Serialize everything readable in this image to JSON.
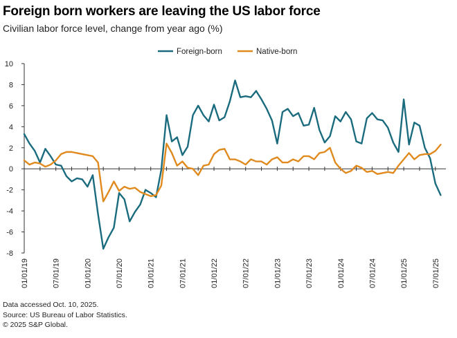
{
  "header": {
    "title": "Foreign born workers are leaving the US labor force",
    "subtitle": "Civilian labor force level, change from year ago (%)"
  },
  "footer": {
    "notes": [
      "Data accessed Oct. 10, 2025.",
      "Source: US Bureau of Labor Statistics.",
      "© 2025 S&P Global."
    ]
  },
  "chart_data": {
    "type": "line",
    "title": "Foreign born workers are leaving the US labor force",
    "ylabel": "Civilian labor force level, change from year ago (%)",
    "xlabel": "",
    "ylim": [
      -8,
      10
    ],
    "yticks": [
      -8,
      -6,
      -4,
      -2,
      0,
      2,
      4,
      6,
      8,
      10
    ],
    "x_start": "2019-01",
    "x_months": 81,
    "xtick_labels": [
      "01/01/19",
      "07/01/19",
      "01/01/20",
      "07/01/20",
      "01/01/21",
      "07/01/21",
      "01/01/22",
      "07/01/22",
      "01/01/23",
      "07/01/23",
      "01/01/24",
      "07/01/24",
      "01/01/25",
      "07/01/25"
    ],
    "xtick_month_index": [
      0,
      6,
      12,
      18,
      24,
      30,
      36,
      42,
      48,
      54,
      60,
      66,
      72,
      78
    ],
    "legend_position": "top-center",
    "series": [
      {
        "name": "Foreign-born",
        "color": "#1a6b7e",
        "values": [
          3.3,
          2.4,
          1.7,
          0.6,
          1.9,
          1.2,
          0.4,
          0.3,
          -0.7,
          -1.2,
          -0.9,
          -1.0,
          -1.7,
          -0.6,
          -4.3,
          -7.6,
          -6.5,
          -5.6,
          -2.3,
          -2.9,
          -5.0,
          -4.1,
          -3.4,
          -2.0,
          -2.3,
          -2.7,
          -0.1,
          5.1,
          2.6,
          3.0,
          1.3,
          2.1,
          5.1,
          6.0,
          5.1,
          4.5,
          6.1,
          4.6,
          4.9,
          6.4,
          8.4,
          6.8,
          6.9,
          6.8,
          7.4,
          6.6,
          5.7,
          4.6,
          2.4,
          5.4,
          5.7,
          5.0,
          5.3,
          4.1,
          4.2,
          5.8,
          3.7,
          2.5,
          3.1,
          5.0,
          4.5,
          5.4,
          4.7,
          2.6,
          2.4,
          4.8,
          5.3,
          4.7,
          4.6,
          3.9,
          2.5,
          1.6,
          6.6,
          2.3,
          4.4,
          4.1,
          2.0,
          1.0,
          -1.4,
          -2.5
        ]
      },
      {
        "name": "Native-born",
        "color": "#e08a1e",
        "values": [
          0.8,
          0.4,
          0.6,
          0.5,
          0.2,
          0.4,
          0.8,
          1.4,
          1.6,
          1.6,
          1.5,
          1.4,
          1.3,
          1.2,
          0.6,
          -3.1,
          -2.2,
          -1.2,
          -2.1,
          -1.7,
          -1.9,
          -1.8,
          -2.2,
          -2.4,
          -2.6,
          -2.5,
          -1.6,
          2.4,
          1.5,
          0.3,
          0.7,
          0.1,
          0.0,
          -0.6,
          0.3,
          0.4,
          1.4,
          1.8,
          1.9,
          0.9,
          0.9,
          0.7,
          0.4,
          0.9,
          0.7,
          0.7,
          0.4,
          0.9,
          1.1,
          0.6,
          0.6,
          0.9,
          0.7,
          1.2,
          1.2,
          0.9,
          1.5,
          1.6,
          2.0,
          0.6,
          0.0,
          -0.4,
          -0.2,
          0.3,
          0.1,
          -0.3,
          -0.2,
          -0.5,
          -0.4,
          -0.3,
          -0.4,
          0.3,
          0.9,
          1.5,
          0.9,
          1.3,
          1.4,
          1.4,
          1.7,
          2.3
        ]
      }
    ]
  }
}
